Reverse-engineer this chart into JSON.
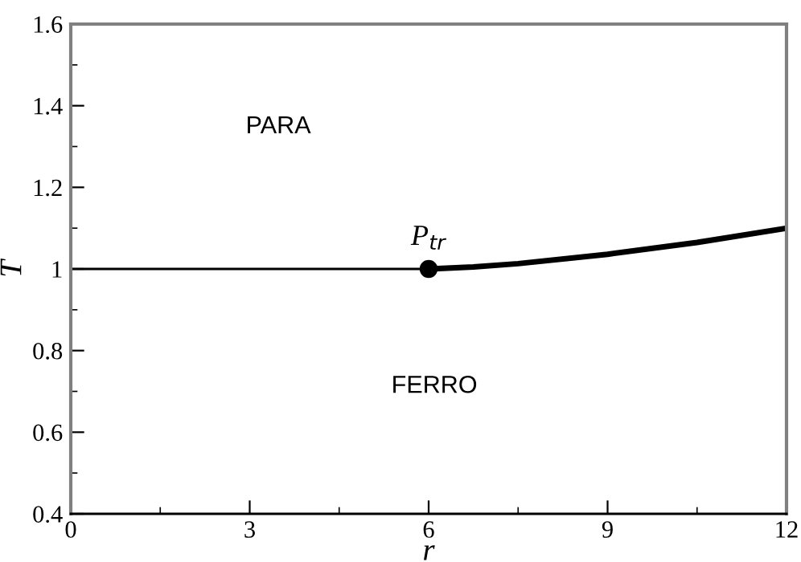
{
  "chart_data": {
    "type": "line",
    "xlabel": "r",
    "ylabel": "T",
    "xlim": [
      0,
      12
    ],
    "ylim": [
      0.4,
      1.6
    ],
    "xticks": [
      0,
      3,
      6,
      9,
      12
    ],
    "yticks": [
      0.4,
      0.6,
      0.8,
      1,
      1.2,
      1.4,
      1.6
    ],
    "grid": false,
    "legend": false,
    "line_style": "solid",
    "series": [
      {
        "color": "#000000",
        "x": [
          0,
          6
        ],
        "values": [
          1,
          1
        ]
      },
      {
        "color": "#000000",
        "x": [
          6,
          6.75,
          7.5,
          9,
          10.5,
          12
        ],
        "values": [
          1,
          1.005,
          1.013,
          1.036,
          1.065,
          1.1
        ]
      },
      {
        "type": "scatter",
        "marker": "circle",
        "color": "#000000",
        "x": [
          6
        ],
        "values": [
          1
        ]
      }
    ],
    "annotations": [
      "PARA",
      "FERRO",
      {
        "text": "P$_{tr}$",
        "x": 6,
        "y": 1
      }
    ]
  }
}
